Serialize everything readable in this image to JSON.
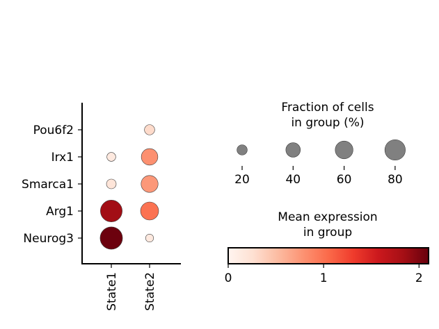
{
  "chart_data": {
    "type": "scatter",
    "subtype": "dotplot",
    "genes": [
      "Pou6f2",
      "Irx1",
      "Smarca1",
      "Arg1",
      "Neurog3"
    ],
    "groups": [
      "State1",
      "State2"
    ],
    "points": [
      {
        "gene": "Pou6f2",
        "group": "State1",
        "fraction": 0,
        "mean": 0
      },
      {
        "gene": "Pou6f2",
        "group": "State2",
        "fraction": 20,
        "mean": 0.3
      },
      {
        "gene": "Irx1",
        "group": "State1",
        "fraction": 15,
        "mean": 0.15
      },
      {
        "gene": "Irx1",
        "group": "State2",
        "fraction": 52,
        "mean": 0.8
      },
      {
        "gene": "Smarca1",
        "group": "State1",
        "fraction": 18,
        "mean": 0.2
      },
      {
        "gene": "Smarca1",
        "group": "State2",
        "fraction": 55,
        "mean": 0.75
      },
      {
        "gene": "Arg1",
        "group": "State1",
        "fraction": 90,
        "mean": 1.85
      },
      {
        "gene": "Arg1",
        "group": "State2",
        "fraction": 62,
        "mean": 1.0
      },
      {
        "gene": "Neurog3",
        "group": "State1",
        "fraction": 95,
        "mean": 2.08
      },
      {
        "gene": "Neurog3",
        "group": "State2",
        "fraction": 12,
        "mean": 0.15
      }
    ],
    "size_legend": {
      "title_line1": "Fraction of cells",
      "title_line2": "in group (%)",
      "values": [
        20,
        40,
        60,
        80
      ],
      "labels": [
        "20",
        "40",
        "60",
        "80"
      ],
      "marker_color": "#808080"
    },
    "color_legend": {
      "title_line1": "Mean expression",
      "title_line2": "in group",
      "colormap": "Reds",
      "range": [
        0,
        2.1
      ],
      "ticks": [
        0,
        1,
        2
      ],
      "tick_labels": [
        "0",
        "1",
        "2"
      ]
    }
  }
}
